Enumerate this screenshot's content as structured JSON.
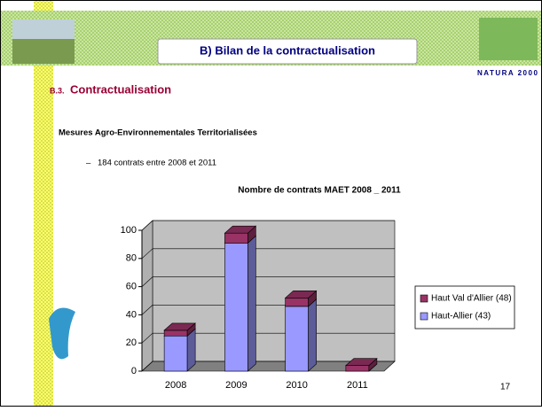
{
  "header": {
    "title": "B) Bilan de la contractualisation",
    "logo_text": "NATURA 2000"
  },
  "section": {
    "number": "B.3.",
    "title": "Contractualisation"
  },
  "heading": "Mesures Agro-Environnementales Territorialisées",
  "bullet": {
    "marker": "–",
    "text": "184 contrats entre 2008 et 2011"
  },
  "page_number": "17",
  "chart_data": {
    "type": "bar",
    "stacked": true,
    "title": "Nombre de contrats MAET 2008 _ 2011",
    "categories": [
      "2008",
      "2009",
      "2010",
      "2011"
    ],
    "series": [
      {
        "name": "Haut-Allier (43)",
        "color": "#9999ff",
        "values": [
          25,
          91,
          46,
          0
        ]
      },
      {
        "name": "Haut Val d'Allier (48)",
        "color": "#993366",
        "values": [
          4,
          7,
          6,
          4
        ]
      }
    ],
    "ylim": [
      0,
      100
    ],
    "yticks": [
      0,
      20,
      40,
      60,
      80,
      100
    ],
    "grid": true
  }
}
